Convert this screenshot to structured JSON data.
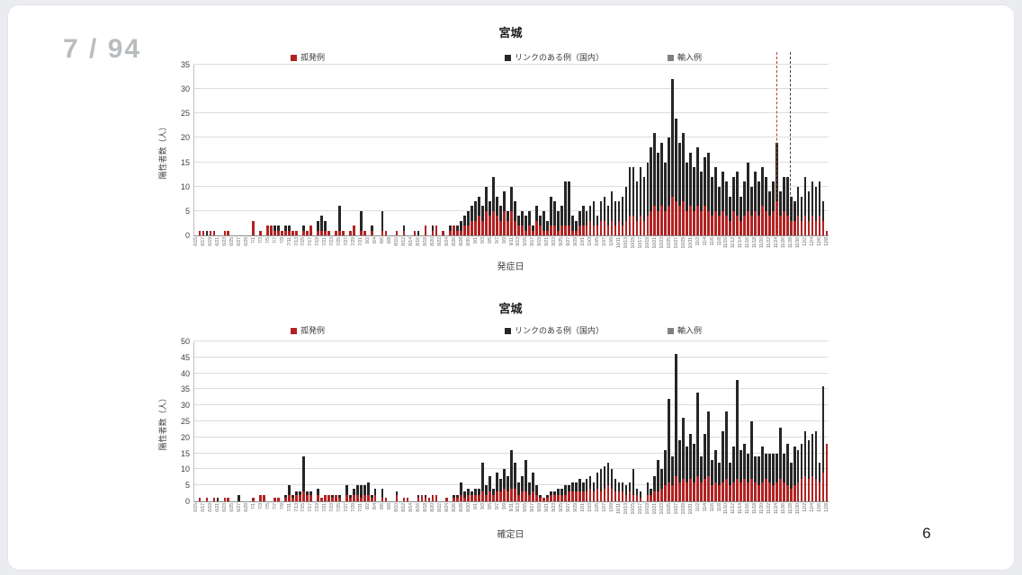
{
  "viewer": {
    "page_indicator": "7 / 94"
  },
  "slide": {
    "page_number": "6"
  },
  "chart_data": [
    {
      "type": "bar",
      "stacked": true,
      "title": "宮城",
      "xlabel": "発症日",
      "ylabel": "陽性者数（人）",
      "ylim": [
        0,
        35
      ],
      "ytick_step": 5,
      "grid": true,
      "legend_position": "top",
      "legend": [
        {
          "label": "孤発例",
          "color": "#b22222"
        },
        {
          "label": "リンクのある例（国内）",
          "color": "#262626"
        },
        {
          "label": "輸入例",
          "color": "#808080"
        }
      ],
      "vlines": [
        {
          "date": "11/24",
          "color": "#c0392b"
        },
        {
          "date": "11/28",
          "color": "#404040"
        }
      ],
      "dates": [
        "6/15",
        "6/16",
        "6/17",
        "6/18",
        "6/19",
        "6/20",
        "6/21",
        "6/22",
        "6/23",
        "6/24",
        "6/25",
        "6/26",
        "6/27",
        "6/28",
        "6/29",
        "6/30",
        "7/1",
        "7/2",
        "7/3",
        "7/4",
        "7/5",
        "7/6",
        "7/7",
        "7/8",
        "7/9",
        "7/10",
        "7/11",
        "7/12",
        "7/13",
        "7/14",
        "7/15",
        "7/16",
        "7/17",
        "7/18",
        "7/19",
        "7/20",
        "7/21",
        "7/22",
        "7/23",
        "7/24",
        "7/25",
        "7/26",
        "7/27",
        "7/28",
        "7/29",
        "7/30",
        "7/31",
        "8/1",
        "8/2",
        "8/3",
        "8/4",
        "8/5",
        "8/6",
        "8/7",
        "8/8",
        "8/9",
        "8/10",
        "8/11",
        "8/12",
        "8/13",
        "8/14",
        "8/15",
        "8/16",
        "8/17",
        "8/18",
        "8/19",
        "8/20",
        "8/21",
        "8/22",
        "8/23",
        "8/24",
        "8/25",
        "8/26",
        "8/27",
        "8/28",
        "8/29",
        "8/30",
        "8/31",
        "9/1",
        "9/2",
        "9/3",
        "9/4",
        "9/5",
        "9/6",
        "9/7",
        "9/8",
        "9/9",
        "9/10",
        "9/11",
        "9/12",
        "9/13",
        "9/14",
        "9/15",
        "9/16",
        "9/17",
        "9/18",
        "9/19",
        "9/20",
        "9/21",
        "9/22",
        "9/23",
        "9/24",
        "9/25",
        "9/26",
        "9/27",
        "9/28",
        "9/29",
        "9/30",
        "10/1",
        "10/2",
        "10/3",
        "10/4",
        "10/5",
        "10/6",
        "10/7",
        "10/8",
        "10/9",
        "10/10",
        "10/11",
        "10/12",
        "10/13",
        "10/14",
        "10/15",
        "10/16",
        "10/17",
        "10/18",
        "10/19",
        "10/20",
        "10/21",
        "10/22",
        "10/23",
        "10/24",
        "10/25",
        "10/26",
        "10/27",
        "10/28",
        "10/29",
        "10/30",
        "10/31",
        "11/1",
        "11/2",
        "11/3",
        "11/4",
        "11/5",
        "11/6",
        "11/7",
        "11/8",
        "11/9",
        "11/10",
        "11/11",
        "11/12",
        "11/13",
        "11/14",
        "11/15",
        "11/16",
        "11/17",
        "11/18",
        "11/19",
        "11/20",
        "11/21",
        "11/22",
        "11/23",
        "11/24",
        "11/25",
        "11/26",
        "11/27",
        "11/28",
        "11/29",
        "11/30",
        "12/1",
        "12/2",
        "12/3",
        "12/4",
        "12/5",
        "12/6",
        "12/7",
        "12/8"
      ],
      "series": [
        {
          "name": "孤発例",
          "color": "#b22222",
          "values": [
            0,
            1,
            1,
            0,
            1,
            1,
            0,
            0,
            1,
            1,
            0,
            0,
            0,
            0,
            0,
            0,
            3,
            0,
            1,
            0,
            2,
            2,
            1,
            1,
            1,
            1,
            1,
            1,
            1,
            0,
            1,
            1,
            2,
            0,
            1,
            1,
            1,
            1,
            0,
            1,
            1,
            1,
            0,
            1,
            2,
            0,
            1,
            1,
            0,
            1,
            0,
            0,
            1,
            1,
            0,
            0,
            1,
            0,
            1,
            0,
            0,
            1,
            0,
            0,
            2,
            0,
            1,
            2,
            0,
            1,
            0,
            1,
            2,
            1,
            1,
            2,
            2,
            3,
            3,
            4,
            3,
            5,
            4,
            5,
            4,
            3,
            5,
            3,
            5,
            3,
            2,
            2,
            1,
            2,
            1,
            3,
            2,
            1,
            1,
            2,
            2,
            1,
            2,
            2,
            2,
            1,
            1,
            2,
            2,
            2,
            3,
            2,
            2,
            3,
            3,
            2,
            3,
            2,
            3,
            2,
            3,
            4,
            4,
            3,
            4,
            3,
            4,
            5,
            6,
            5,
            6,
            5,
            6,
            8,
            7,
            6,
            7,
            5,
            6,
            5,
            6,
            5,
            6,
            5,
            4,
            5,
            4,
            5,
            4,
            3,
            5,
            4,
            3,
            4,
            5,
            4,
            5,
            4,
            6,
            5,
            4,
            5,
            7,
            4,
            5,
            4,
            3,
            3,
            4,
            3,
            4,
            3,
            4,
            3,
            4,
            3,
            1
          ]
        },
        {
          "name": "リンクのある例（国内）",
          "color": "#262626",
          "values": [
            0,
            0,
            0,
            1,
            0,
            0,
            0,
            0,
            0,
            0,
            0,
            0,
            0,
            0,
            0,
            0,
            0,
            0,
            0,
            0,
            0,
            0,
            1,
            1,
            0,
            1,
            1,
            0,
            0,
            0,
            1,
            0,
            0,
            0,
            2,
            3,
            2,
            0,
            0,
            0,
            5,
            0,
            0,
            0,
            0,
            0,
            4,
            0,
            0,
            1,
            0,
            0,
            4,
            0,
            0,
            0,
            0,
            0,
            1,
            0,
            0,
            0,
            1,
            0,
            0,
            0,
            1,
            0,
            0,
            0,
            0,
            1,
            0,
            1,
            2,
            2,
            3,
            3,
            4,
            4,
            3,
            5,
            3,
            7,
            4,
            3,
            4,
            2,
            5,
            4,
            2,
            3,
            3,
            3,
            1,
            3,
            2,
            4,
            2,
            6,
            5,
            4,
            4,
            9,
            9,
            3,
            2,
            3,
            4,
            3,
            3,
            5,
            2,
            4,
            5,
            4,
            6,
            5,
            4,
            6,
            7,
            10,
            10,
            8,
            10,
            9,
            11,
            13,
            15,
            12,
            13,
            10,
            14,
            24,
            17,
            13,
            14,
            10,
            11,
            9,
            12,
            8,
            10,
            12,
            8,
            9,
            6,
            8,
            7,
            5,
            7,
            9,
            5,
            7,
            10,
            6,
            8,
            7,
            8,
            7,
            5,
            6,
            12,
            5,
            7,
            8,
            5,
            4,
            6,
            5,
            8,
            6,
            7,
            7,
            7,
            4,
            0
          ]
        }
      ]
    },
    {
      "type": "bar",
      "stacked": true,
      "title": "宮城",
      "xlabel": "確定日",
      "ylabel": "陽性者数（人）",
      "ylim": [
        0,
        50
      ],
      "ytick_step": 5,
      "grid": true,
      "legend_position": "top",
      "legend": [
        {
          "label": "孤発例",
          "color": "#b22222"
        },
        {
          "label": "リンクのある例（国内）",
          "color": "#262626"
        },
        {
          "label": "輸入例",
          "color": "#808080"
        }
      ],
      "vlines": [],
      "dates": [
        "6/15",
        "6/16",
        "6/17",
        "6/18",
        "6/19",
        "6/20",
        "6/21",
        "6/22",
        "6/23",
        "6/24",
        "6/25",
        "6/26",
        "6/27",
        "6/28",
        "6/29",
        "6/30",
        "7/1",
        "7/2",
        "7/3",
        "7/4",
        "7/5",
        "7/6",
        "7/7",
        "7/8",
        "7/9",
        "7/10",
        "7/11",
        "7/12",
        "7/13",
        "7/14",
        "7/15",
        "7/16",
        "7/17",
        "7/18",
        "7/19",
        "7/20",
        "7/21",
        "7/22",
        "7/23",
        "7/24",
        "7/25",
        "7/26",
        "7/27",
        "7/28",
        "7/29",
        "7/30",
        "7/31",
        "8/1",
        "8/2",
        "8/3",
        "8/4",
        "8/5",
        "8/6",
        "8/7",
        "8/8",
        "8/9",
        "8/10",
        "8/11",
        "8/12",
        "8/13",
        "8/14",
        "8/15",
        "8/16",
        "8/17",
        "8/18",
        "8/19",
        "8/20",
        "8/21",
        "8/22",
        "8/23",
        "8/24",
        "8/25",
        "8/26",
        "8/27",
        "8/28",
        "8/29",
        "8/30",
        "8/31",
        "9/1",
        "9/2",
        "9/3",
        "9/4",
        "9/5",
        "9/6",
        "9/7",
        "9/8",
        "9/9",
        "9/10",
        "9/11",
        "9/12",
        "9/13",
        "9/14",
        "9/15",
        "9/16",
        "9/17",
        "9/18",
        "9/19",
        "9/20",
        "9/21",
        "9/22",
        "9/23",
        "9/24",
        "9/25",
        "9/26",
        "9/27",
        "9/28",
        "9/29",
        "9/30",
        "10/1",
        "10/2",
        "10/3",
        "10/4",
        "10/5",
        "10/6",
        "10/7",
        "10/8",
        "10/9",
        "10/10",
        "10/11",
        "10/12",
        "10/13",
        "10/14",
        "10/15",
        "10/16",
        "10/17",
        "10/18",
        "10/19",
        "10/20",
        "10/21",
        "10/22",
        "10/23",
        "10/24",
        "10/25",
        "10/26",
        "10/27",
        "10/28",
        "10/29",
        "10/30",
        "10/31",
        "11/1",
        "11/2",
        "11/3",
        "11/4",
        "11/5",
        "11/6",
        "11/7",
        "11/8",
        "11/9",
        "11/10",
        "11/11",
        "11/12",
        "11/13",
        "11/14",
        "11/15",
        "11/16",
        "11/17",
        "11/18",
        "11/19",
        "11/20",
        "11/21",
        "11/22",
        "11/23",
        "11/24",
        "11/25",
        "11/26",
        "11/27",
        "11/28",
        "11/29",
        "11/30",
        "12/1",
        "12/2",
        "12/3",
        "12/4",
        "12/5",
        "12/6",
        "12/7",
        "12/8"
      ],
      "series": [
        {
          "name": "孤発例",
          "color": "#b22222",
          "values": [
            0,
            1,
            0,
            1,
            0,
            1,
            0,
            0,
            1,
            1,
            0,
            0,
            0,
            0,
            0,
            0,
            1,
            0,
            2,
            2,
            0,
            0,
            1,
            1,
            0,
            1,
            2,
            1,
            2,
            2,
            3,
            2,
            2,
            0,
            2,
            1,
            2,
            2,
            1,
            2,
            1,
            0,
            2,
            1,
            2,
            2,
            1,
            2,
            2,
            1,
            2,
            0,
            1,
            1,
            0,
            0,
            2,
            0,
            1,
            1,
            0,
            0,
            1,
            2,
            1,
            1,
            2,
            2,
            0,
            0,
            1,
            0,
            1,
            1,
            2,
            1,
            2,
            2,
            2,
            2,
            3,
            2,
            3,
            2,
            3,
            3,
            4,
            3,
            4,
            4,
            2,
            3,
            3,
            2,
            3,
            2,
            1,
            1,
            1,
            2,
            2,
            2,
            2,
            2,
            3,
            3,
            3,
            3,
            3,
            3,
            4,
            3,
            4,
            3,
            4,
            5,
            4,
            3,
            3,
            3,
            2,
            3,
            2,
            2,
            1,
            0,
            2,
            2,
            3,
            3,
            4,
            5,
            6,
            5,
            8,
            6,
            7,
            6,
            7,
            6,
            8,
            6,
            7,
            8,
            5,
            6,
            5,
            6,
            7,
            5,
            6,
            7,
            6,
            7,
            6,
            7,
            6,
            5,
            6,
            7,
            6,
            5,
            6,
            7,
            6,
            5,
            4,
            5,
            6,
            7,
            8,
            7,
            8,
            7,
            6,
            9,
            18
          ]
        },
        {
          "name": "リンクのある例（国内）",
          "color": "#262626",
          "values": [
            0,
            0,
            0,
            0,
            0,
            0,
            1,
            0,
            0,
            0,
            0,
            0,
            2,
            0,
            0,
            0,
            0,
            0,
            0,
            0,
            0,
            0,
            0,
            0,
            0,
            1,
            3,
            1,
            1,
            1,
            11,
            1,
            1,
            0,
            2,
            0,
            0,
            0,
            1,
            0,
            1,
            0,
            3,
            1,
            2,
            3,
            4,
            3,
            4,
            1,
            2,
            0,
            3,
            0,
            0,
            0,
            1,
            0,
            0,
            0,
            0,
            0,
            1,
            0,
            1,
            0,
            0,
            0,
            0,
            0,
            0,
            0,
            1,
            1,
            4,
            2,
            2,
            1,
            2,
            2,
            9,
            3,
            5,
            2,
            6,
            4,
            6,
            5,
            12,
            8,
            4,
            5,
            10,
            4,
            6,
            3,
            1,
            0,
            1,
            1,
            1,
            2,
            2,
            3,
            2,
            3,
            3,
            4,
            3,
            4,
            4,
            3,
            5,
            7,
            7,
            7,
            6,
            4,
            3,
            3,
            3,
            3,
            8,
            2,
            2,
            0,
            4,
            2,
            5,
            10,
            6,
            11,
            26,
            9,
            38,
            13,
            19,
            11,
            14,
            12,
            26,
            8,
            14,
            20,
            8,
            10,
            7,
            16,
            21,
            7,
            11,
            31,
            10,
            11,
            9,
            18,
            8,
            9,
            11,
            8,
            9,
            10,
            9,
            16,
            9,
            13,
            8,
            12,
            10,
            11,
            14,
            12,
            13,
            15,
            6,
            27,
            0
          ]
        }
      ]
    }
  ]
}
